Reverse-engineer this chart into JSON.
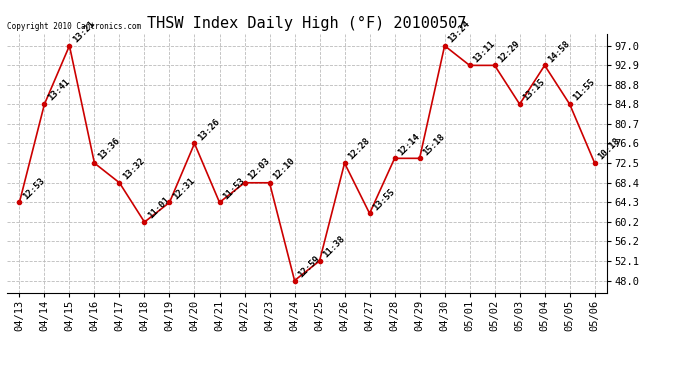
{
  "title": "THSW Index Daily High (°F) 20100507",
  "copyright": "Copyright 2010 Cantronics.com",
  "dates": [
    "04/13",
    "04/14",
    "04/15",
    "04/16",
    "04/17",
    "04/18",
    "04/19",
    "04/20",
    "04/21",
    "04/22",
    "04/23",
    "04/24",
    "04/25",
    "04/26",
    "04/27",
    "04/28",
    "04/29",
    "04/30",
    "05/01",
    "05/02",
    "05/03",
    "05/04",
    "05/05",
    "05/06"
  ],
  "values": [
    64.3,
    84.8,
    97.0,
    72.5,
    68.4,
    60.2,
    64.3,
    76.6,
    64.3,
    68.4,
    68.4,
    48.0,
    52.1,
    72.5,
    62.0,
    73.5,
    73.5,
    97.0,
    92.9,
    92.9,
    84.8,
    92.9,
    84.8,
    72.5
  ],
  "labels": [
    "12:53",
    "13:41",
    "13:21",
    "13:36",
    "13:32",
    "11:01",
    "12:31",
    "13:26",
    "11:53",
    "12:03",
    "12:10",
    "12:59",
    "11:38",
    "12:28",
    "13:55",
    "12:14",
    "15:18",
    "13:24",
    "13:11",
    "12:29",
    "13:15",
    "14:58",
    "11:55",
    "10:18"
  ],
  "yticks": [
    48.0,
    52.1,
    56.2,
    60.2,
    64.3,
    68.4,
    72.5,
    76.6,
    80.7,
    84.8,
    88.8,
    92.9,
    97.0
  ],
  "ylim": [
    45.5,
    99.5
  ],
  "line_color": "#cc0000",
  "marker_color": "#cc0000",
  "bg_color": "#ffffff",
  "grid_color": "#bbbbbb",
  "title_fontsize": 11,
  "label_fontsize": 6.5,
  "tick_fontsize": 7.5,
  "copyright_fontsize": 5.5
}
